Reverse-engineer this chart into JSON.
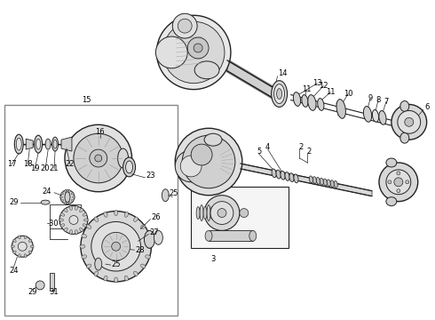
{
  "background_color": "#ffffff",
  "fig_width": 4.9,
  "fig_height": 3.6,
  "dpi": 100,
  "lc": "#222222",
  "lw_thick": 1.2,
  "lw_med": 0.7,
  "lw_thin": 0.5,
  "fs": 6.0
}
